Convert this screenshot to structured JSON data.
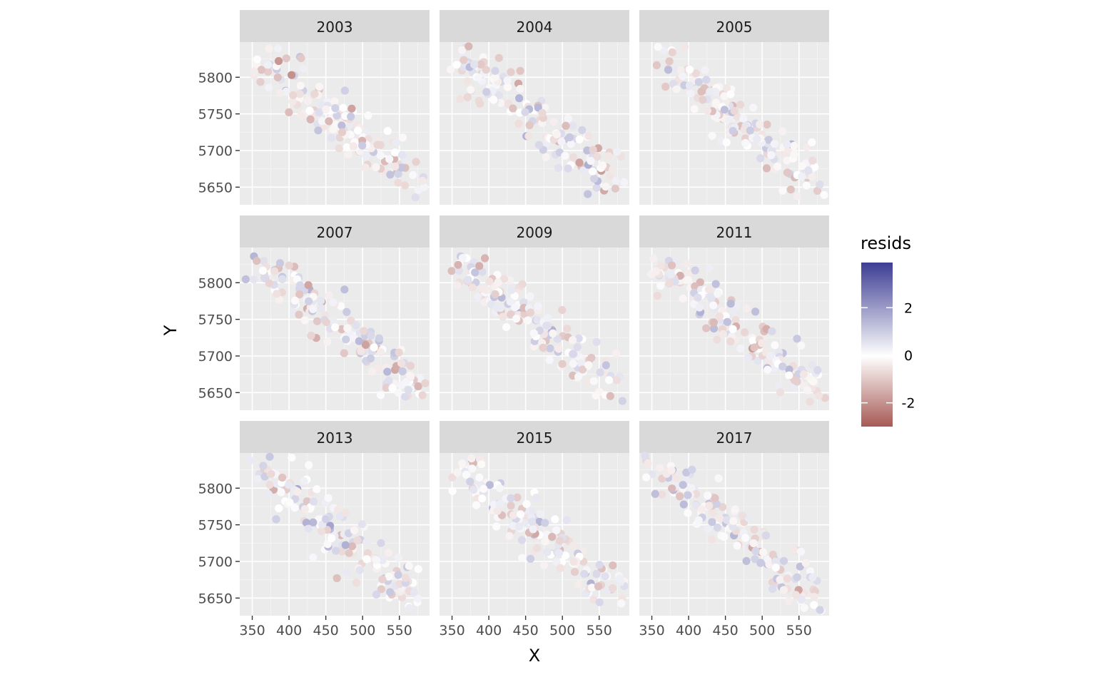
{
  "chart_data": {
    "type": "scatter",
    "facets": [
      "2003",
      "2004",
      "2005",
      "2007",
      "2009",
      "2011",
      "2013",
      "2015",
      "2017"
    ],
    "xlabel": "X",
    "ylabel": "Y",
    "xlim": [
      333,
      591
    ],
    "ylim": [
      5626,
      5848
    ],
    "x_ticks": [
      350,
      400,
      450,
      500,
      550
    ],
    "y_ticks": [
      5650,
      5700,
      5750,
      5800
    ],
    "x_tick_labels": [
      "350",
      "400",
      "450",
      "500",
      "550"
    ],
    "y_tick_labels": [
      "5650",
      "5700",
      "5750",
      "5800"
    ],
    "grid": true,
    "legend": {
      "title": "resids",
      "position": "right",
      "range": [
        -3.0,
        3.9
      ],
      "breaks": [
        2,
        0,
        -2
      ],
      "break_labels": [
        "2",
        "0",
        "-2"
      ],
      "colors": {
        "low": "#a65a55",
        "mid": "#ffffff",
        "high": "#3d3d94"
      }
    },
    "points_per_facet": 160,
    "series_note": "point locations form a diagonal band from about (350, 5830) to (580, 5650) in every facet; colour encodes resids"
  }
}
